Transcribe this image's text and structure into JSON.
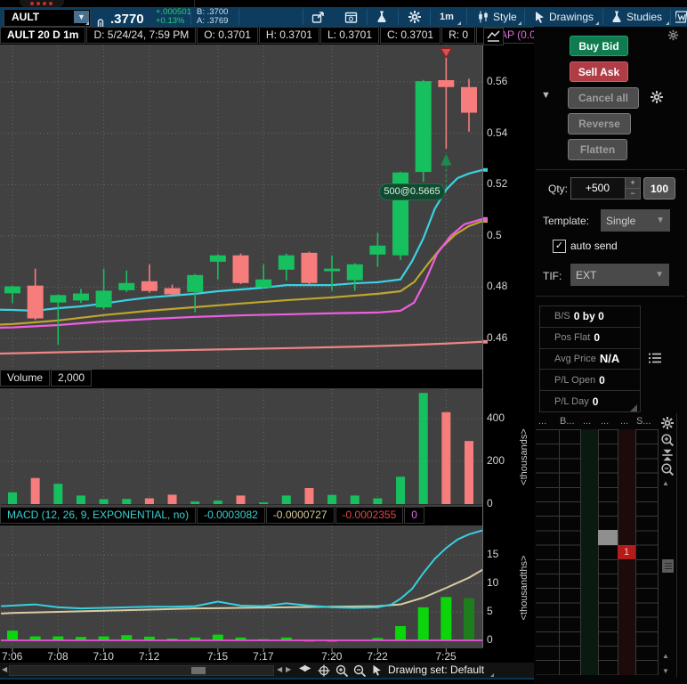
{
  "toolbar": {
    "symbol": "AULT",
    "price": ".3770",
    "change": "+.000501",
    "change_pct": "+0.13%",
    "bid": "B: .3700",
    "ask": "A: .3769",
    "timeframe": "1m",
    "style_label": "Style",
    "drawings_label": "Drawings",
    "studies_label": "Studies"
  },
  "chart_header": {
    "title": "AULT 20 D 1m",
    "datetime": "D: 5/24/24, 7:59 PM",
    "open": "O: 0.3701",
    "high": "H: 0.3701",
    "low": "L: 0.3701",
    "close": "C: 0.3701",
    "r": "R: 0",
    "vwap": "VWAP (0.0, 0.0,..."
  },
  "colors": {
    "up": "#17c05f",
    "down": "#f77c7c",
    "macd_line": "#35d0e0",
    "signal_line": "#d9cba2",
    "zero_line": "#f24fe0",
    "hist_up": "#0bd60b",
    "hist_last": "#1e7e1e",
    "hist_down": "#d93025",
    "buy_marker": "#1b8a4e",
    "sell_marker": "#d94f4f"
  },
  "chart_data": [
    {
      "type": "candlestick",
      "title": "AULT 20 D 1m",
      "timeframe": "1m",
      "ylim": [
        0.448,
        0.575
      ],
      "yticks": [
        0.56,
        0.54,
        0.52,
        0.5,
        0.48,
        0.46
      ],
      "ytick_labels": [
        "0.56",
        "0.54",
        "0.52",
        "0.5",
        "0.48",
        "0.46"
      ],
      "x_labels": [
        {
          "label": "7:06",
          "i": 0
        },
        {
          "label": "7:08",
          "i": 2
        },
        {
          "label": "7:10",
          "i": 4
        },
        {
          "label": "7:12",
          "i": 6
        },
        {
          "label": "7:15",
          "i": 9
        },
        {
          "label": "7:17",
          "i": 11
        },
        {
          "label": "7:20",
          "i": 14
        },
        {
          "label": "7:22",
          "i": 16
        },
        {
          "label": "7:25",
          "i": 19
        }
      ],
      "candles": [
        [
          0.4776,
          0.4806,
          0.4737,
          0.4803
        ],
        [
          0.4806,
          0.4872,
          0.4672,
          0.4678
        ],
        [
          0.474,
          0.4772,
          0.4576,
          0.4769
        ],
        [
          0.4748,
          0.4793,
          0.4738,
          0.4775
        ],
        [
          0.4721,
          0.4872,
          0.4714,
          0.4786
        ],
        [
          0.4788,
          0.4865,
          0.4781,
          0.4816
        ],
        [
          0.4823,
          0.4889,
          0.4778,
          0.4785
        ],
        [
          0.4796,
          0.481,
          0.4768,
          0.4772
        ],
        [
          0.4781,
          0.4851,
          0.4702,
          0.4847
        ],
        [
          0.4899,
          0.4928,
          0.483,
          0.4924
        ],
        [
          0.4924,
          0.4931,
          0.4812,
          0.4816
        ],
        [
          0.4799,
          0.4889,
          0.4795,
          0.483
        ],
        [
          0.4868,
          0.4931,
          0.4826,
          0.4924
        ],
        [
          0.4934,
          0.4938,
          0.4809,
          0.4816
        ],
        [
          0.4862,
          0.4924,
          0.4786,
          0.4872
        ],
        [
          0.4827,
          0.4893,
          0.4786,
          0.4889
        ],
        [
          0.4927,
          0.5012,
          0.4879,
          0.4962
        ],
        [
          0.4924,
          0.525,
          0.4906,
          0.5247
        ],
        [
          0.5249,
          0.5608,
          0.521,
          0.5603
        ],
        [
          0.5607,
          0.57,
          0.534,
          0.558
        ],
        [
          0.558,
          0.5612,
          0.5406,
          0.548
        ]
      ],
      "overlays": [
        {
          "name": "fast-ma-cyan",
          "color": "#3ad2e2",
          "points": [
            [
              -0.55,
              0.4712
            ],
            [
              0,
              0.4711
            ],
            [
              1,
              0.4708
            ],
            [
              2,
              0.4718
            ],
            [
              3,
              0.4725
            ],
            [
              4,
              0.4736
            ],
            [
              5,
              0.4749
            ],
            [
              6,
              0.476
            ],
            [
              7,
              0.4767
            ],
            [
              8,
              0.4774
            ],
            [
              9,
              0.4784
            ],
            [
              10,
              0.4791
            ],
            [
              11,
              0.4798
            ],
            [
              12,
              0.4808
            ],
            [
              13,
              0.4808
            ],
            [
              14,
              0.4808
            ],
            [
              15,
              0.4815
            ],
            [
              16,
              0.4819
            ],
            [
              17,
              0.483
            ],
            [
              17.5,
              0.49
            ],
            [
              18,
              0.499
            ],
            [
              18.5,
              0.5105
            ],
            [
              19,
              0.518
            ],
            [
              19.5,
              0.5225
            ],
            [
              20,
              0.5243
            ],
            [
              20.6,
              0.5257
            ]
          ]
        },
        {
          "name": "ma-gold",
          "color": "#bfa62f",
          "points": [
            [
              -0.55,
              0.4654
            ],
            [
              0,
              0.4656
            ],
            [
              2,
              0.467
            ],
            [
              4,
              0.4691
            ],
            [
              6,
              0.4708
            ],
            [
              8,
              0.4722
            ],
            [
              10,
              0.4736
            ],
            [
              12,
              0.4749
            ],
            [
              14,
              0.476
            ],
            [
              16,
              0.4774
            ],
            [
              17,
              0.4784
            ],
            [
              17.6,
              0.482
            ],
            [
              18.2,
              0.489
            ],
            [
              18.8,
              0.4955
            ],
            [
              19.4,
              0.5005
            ],
            [
              20,
              0.5038
            ],
            [
              20.6,
              0.5058
            ]
          ]
        },
        {
          "name": "vwap-magenta",
          "color": "#ee5fe0",
          "points": [
            [
              -0.55,
              0.4642
            ],
            [
              0,
              0.4643
            ],
            [
              2,
              0.4652
            ],
            [
              4,
              0.4666
            ],
            [
              6,
              0.4676
            ],
            [
              8,
              0.4684
            ],
            [
              10,
              0.469
            ],
            [
              12,
              0.4694
            ],
            [
              14,
              0.4698
            ],
            [
              16,
              0.4701
            ],
            [
              17,
              0.4708
            ],
            [
              17.6,
              0.474
            ],
            [
              18.1,
              0.4826
            ],
            [
              18.6,
              0.493
            ],
            [
              19.2,
              0.5
            ],
            [
              19.8,
              0.5045
            ],
            [
              20.6,
              0.5066
            ]
          ]
        },
        {
          "name": "ma-salmon",
          "color": "#ef8585",
          "points": [
            [
              -0.55,
              0.4541
            ],
            [
              3,
              0.4548
            ],
            [
              6,
              0.4552
            ],
            [
              9,
              0.4557
            ],
            [
              12,
              0.4562
            ],
            [
              15,
              0.4568
            ],
            [
              17,
              0.4573
            ],
            [
              19,
              0.458
            ],
            [
              20.6,
              0.4587
            ]
          ]
        }
      ],
      "markers": [
        {
          "type": "sell",
          "i": 19,
          "price": 0.573
        },
        {
          "type": "buy",
          "i": 19,
          "price": 0.532
        }
      ],
      "annotation": {
        "text": "500@0.5665"
      }
    },
    {
      "type": "bar",
      "name": "Volume",
      "header_value": "2,000",
      "ylim": [
        0,
        560
      ],
      "yticks": [
        400,
        200,
        0
      ],
      "unit": "<thousands>",
      "values": [
        55,
        122,
        95,
        40,
        23,
        24,
        27,
        44,
        12,
        16,
        40,
        8,
        40,
        75,
        43,
        40,
        27,
        128,
        520,
        430,
        295
      ]
    },
    {
      "type": "macd",
      "title_full": "MACD (12, 26, 9, EXPONENTIAL, no)",
      "readout": [
        "-0.0003082",
        "-0.0000727",
        "-0.0002355",
        "0"
      ],
      "ylim": [
        -1.2,
        20
      ],
      "yticks": [
        15,
        10,
        5,
        0
      ],
      "unit": "<thousandths>",
      "histogram": [
        1.7,
        0.7,
        0.7,
        0.6,
        0.7,
        0.9,
        0.65,
        0.3,
        0.5,
        1.0,
        0.5,
        0.2,
        0.5,
        -0.25,
        -0.3,
        -0.15,
        0.4,
        2.5,
        5.8,
        7.6,
        7.4
      ],
      "macd_line": [
        [
          -0.5,
          6.0
        ],
        [
          0,
          6.1
        ],
        [
          1,
          6.3
        ],
        [
          2,
          5.8
        ],
        [
          3,
          5.6
        ],
        [
          4,
          5.7
        ],
        [
          5,
          5.8
        ],
        [
          6,
          5.9
        ],
        [
          7,
          5.9
        ],
        [
          8,
          6.0
        ],
        [
          9,
          6.8
        ],
        [
          10,
          6.1
        ],
        [
          11,
          6.0
        ],
        [
          12,
          6.5
        ],
        [
          13,
          6.1
        ],
        [
          14,
          5.8
        ],
        [
          15,
          5.7
        ],
        [
          16,
          5.8
        ],
        [
          16.6,
          6.3
        ],
        [
          17,
          7.3
        ],
        [
          17.5,
          9.0
        ],
        [
          18,
          11.8
        ],
        [
          18.5,
          14.3
        ],
        [
          19,
          16.2
        ],
        [
          19.5,
          17.7
        ],
        [
          20,
          18.6
        ],
        [
          20.6,
          19.3
        ]
      ],
      "signal_line": [
        [
          -0.5,
          4.7
        ],
        [
          0,
          4.8
        ],
        [
          2,
          5.0
        ],
        [
          4,
          5.2
        ],
        [
          6,
          5.4
        ],
        [
          8,
          5.6
        ],
        [
          10,
          5.7
        ],
        [
          12,
          5.8
        ],
        [
          14,
          5.9
        ],
        [
          16,
          6.0
        ],
        [
          17,
          6.3
        ],
        [
          18,
          7.5
        ],
        [
          19,
          9.2
        ],
        [
          20,
          11.0
        ],
        [
          20.6,
          12.4
        ]
      ]
    }
  ],
  "trade_panel": {
    "buy": "Buy Bid",
    "sell": "Sell Ask",
    "cancel": "Cancel all",
    "reverse": "Reverse",
    "flatten": "Flatten",
    "qty_label": "Qty:",
    "qty_value": "+500",
    "qty_plus": "+",
    "qty_minus": "−",
    "qty_preset": "100",
    "template_label": "Template:",
    "template_value": "Single",
    "auto_send": "auto send",
    "checkmark": "✓",
    "tif_label": "TIF:",
    "tif_value": "EXT"
  },
  "position_summary": {
    "rows": [
      {
        "label": "B/S",
        "value": "0 by 0"
      },
      {
        "label": "Pos Flat",
        "value": "0"
      },
      {
        "label": "Avg Price",
        "value": "N/A"
      },
      {
        "label": "P/L Open",
        "value": "0"
      },
      {
        "label": "P/L Day",
        "value": "0"
      }
    ]
  },
  "ladder": {
    "headers": [
      "...",
      "B...",
      "...",
      "...",
      "...",
      "S..."
    ],
    "order_qty": "1"
  },
  "bottom_bar": {
    "drawing_set": "Drawing set: Default"
  }
}
